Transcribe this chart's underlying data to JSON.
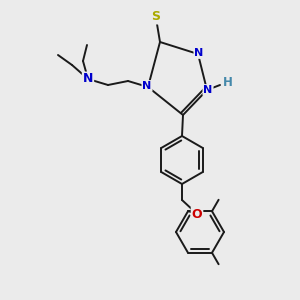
{
  "bg_color": "#ebebeb",
  "bond_color": "#1a1a1a",
  "bond_lw": 1.4,
  "atom_colors": {
    "S": "#aaaa00",
    "N_blue": "#0000cc",
    "N_gray": "#4488aa",
    "O": "#cc0000",
    "H": "#4488aa"
  },
  "figsize": [
    3.0,
    3.0
  ],
  "dpi": 100,
  "xlim": [
    0,
    300
  ],
  "ylim": [
    0,
    300
  ]
}
